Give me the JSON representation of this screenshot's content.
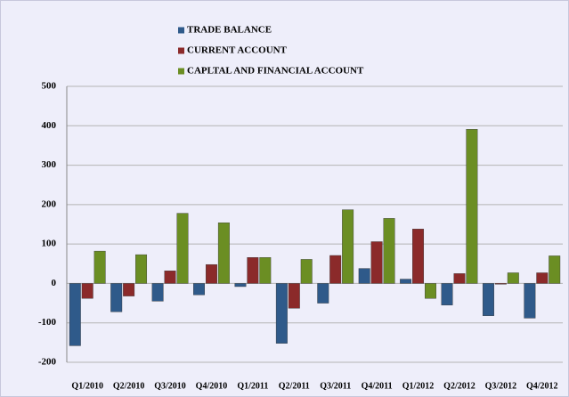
{
  "chart_data": {
    "type": "bar",
    "categories": [
      "Q1/2010",
      "Q2/2010",
      "Q3/2010",
      "Q4/2010",
      "Q1/2011",
      "Q2/2011",
      "Q3/2011",
      "Q4/2011",
      "Q1/2012",
      "Q2/2012",
      "Q3/2012",
      "Q4/2012"
    ],
    "series": [
      {
        "name": "TRADE BALANCE",
        "color": "#2f5a8a",
        "values": [
          -158,
          -72,
          -45,
          -29,
          -8,
          -152,
          -50,
          38,
          11,
          -55,
          -82,
          -88
        ]
      },
      {
        "name": "CURRENT ACCOUNT",
        "color": "#8b2a2a",
        "values": [
          -38,
          -32,
          32,
          48,
          66,
          -63,
          71,
          106,
          138,
          25,
          -2,
          27
        ]
      },
      {
        "name": "CAPLTAL AND FINANCIAL ACCOUNT",
        "color": "#6b8e23",
        "values": [
          82,
          73,
          178,
          154,
          66,
          61,
          187,
          165,
          -38,
          391,
          27,
          70
        ]
      }
    ],
    "ylim": [
      -200,
      500
    ],
    "yticks": [
      -200,
      -100,
      0,
      100,
      200,
      300,
      400,
      500
    ],
    "grid": true,
    "legend": "top"
  }
}
